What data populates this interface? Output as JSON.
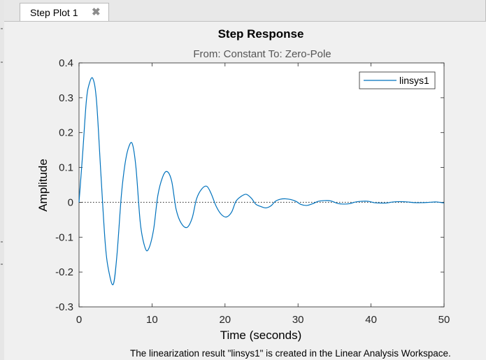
{
  "tab": {
    "label": "Step Plot 1",
    "close_glyph": "✖"
  },
  "chart_data": {
    "type": "line",
    "title": "Step Response",
    "subtitle": "From: Constant  To: Zero-Pole",
    "xlabel": "Time (seconds)",
    "ylabel": "Amplitude",
    "xlim": [
      0,
      50
    ],
    "ylim": [
      -0.3,
      0.4
    ],
    "xticks": [
      0,
      10,
      20,
      30,
      40,
      50
    ],
    "yticks": [
      -0.3,
      -0.2,
      -0.1,
      0,
      0.1,
      0.2,
      0.3,
      0.4
    ],
    "legend_position": "top-right",
    "grid": false,
    "reference_line": {
      "y": 0,
      "style": "dotted"
    },
    "series": [
      {
        "name": "linsys1",
        "color": "#0072bd",
        "x": [
          0,
          0.5,
          1,
          1.4,
          1.9,
          2.4,
          3,
          3.6,
          4.1,
          4.7,
          5.2,
          5.8,
          6.3,
          6.8,
          7.3,
          7.8,
          8.4,
          9,
          9.5,
          10.2,
          10.8,
          11.5,
          12.1,
          12.7,
          13.3,
          14,
          14.8,
          15.5,
          16.1,
          16.8,
          17.5,
          18.1,
          18.8,
          19.5,
          20.2,
          20.9,
          21.5,
          22.2,
          22.9,
          23.6,
          24.2,
          24.9,
          25.6,
          26.3,
          26.9,
          27.6,
          28.3,
          29,
          29.7,
          30.4,
          31.2,
          32,
          32.8,
          33.7,
          34.5,
          35.4,
          36.2,
          37,
          37.9,
          38.7,
          39.6,
          40.4,
          41.2,
          42.1,
          43,
          44,
          45,
          46,
          47,
          48,
          49,
          50
        ],
        "values": [
          0,
          0.14,
          0.29,
          0.34,
          0.355,
          0.29,
          0.08,
          -0.12,
          -0.2,
          -0.235,
          -0.15,
          0.02,
          0.11,
          0.158,
          0.168,
          0.1,
          -0.06,
          -0.127,
          -0.135,
          -0.08,
          0.02,
          0.075,
          0.088,
          0.06,
          -0.02,
          -0.06,
          -0.072,
          -0.045,
          0.01,
          0.038,
          0.046,
          0.025,
          -0.012,
          -0.035,
          -0.042,
          -0.028,
          0.003,
          0.017,
          0.023,
          0.012,
          -0.005,
          -0.012,
          -0.016,
          -0.01,
          0.003,
          0.009,
          0.01,
          0.008,
          0.003,
          -0.006,
          -0.009,
          -0.004,
          0.003,
          0.005,
          0.004,
          -0.003,
          -0.005,
          -0.004,
          0.001,
          0.003,
          0.003,
          -0.001,
          -0.002,
          -0.002,
          0.001,
          0.002,
          0.001,
          -0.001,
          -0.001,
          0.0,
          0.001,
          -0.002
        ]
      }
    ]
  },
  "status_text": "The linearization result \"linsys1\" is created in the Linear Analysis Workspace."
}
